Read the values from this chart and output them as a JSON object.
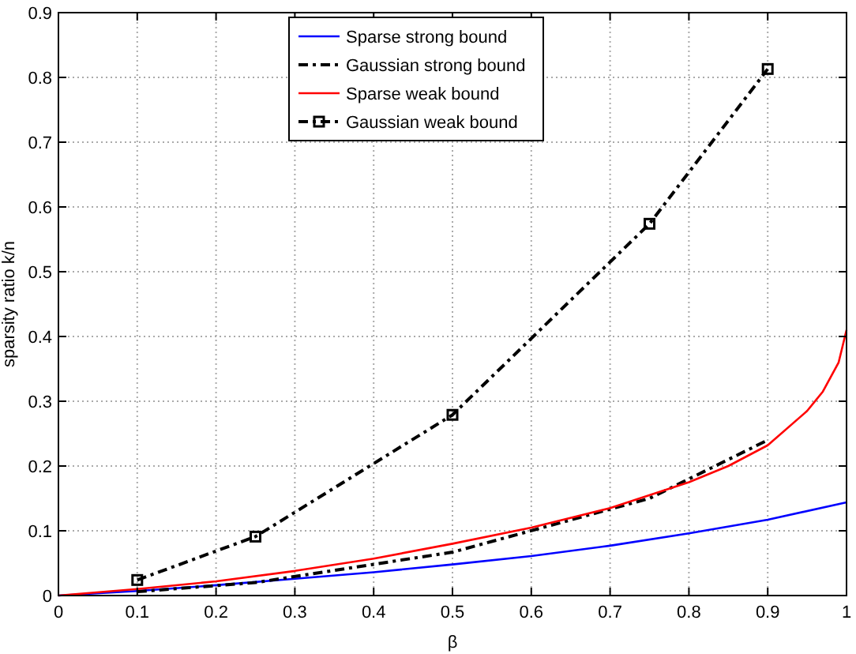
{
  "chart_data": {
    "type": "line",
    "xlabel": "β",
    "ylabel": "sparsity ratio k/n",
    "xlim": [
      0,
      1
    ],
    "ylim": [
      0,
      0.9
    ],
    "xticks": [
      0,
      0.1,
      0.2,
      0.3,
      0.4,
      0.5,
      0.6,
      0.7,
      0.8,
      0.9,
      1
    ],
    "yticks": [
      0,
      0.1,
      0.2,
      0.3,
      0.4,
      0.5,
      0.6,
      0.7,
      0.8,
      0.9
    ],
    "grid": true,
    "legend": "top",
    "series": [
      {
        "name": "Sparse strong bound",
        "color": "#0000ff",
        "line_style": "solid",
        "marker": "none",
        "x": [
          0,
          0.1,
          0.2,
          0.3,
          0.4,
          0.5,
          0.6,
          0.7,
          0.8,
          0.9,
          1
        ],
        "values": [
          0,
          0.007,
          0.016,
          0.026,
          0.036,
          0.048,
          0.061,
          0.077,
          0.096,
          0.117,
          0.144
        ]
      },
      {
        "name": "Gaussian strong bound",
        "color": "#000000",
        "line_style": "dashed",
        "marker": "none",
        "x": [
          0.1,
          0.25,
          0.5,
          0.75,
          0.9
        ],
        "values": [
          0.006,
          0.02,
          0.067,
          0.15,
          0.24
        ]
      },
      {
        "name": "Sparse weak bound",
        "color": "#ff0000",
        "line_style": "solid",
        "marker": "none",
        "x": [
          0,
          0.1,
          0.2,
          0.3,
          0.4,
          0.5,
          0.6,
          0.7,
          0.8,
          0.85,
          0.9,
          0.95,
          0.97,
          0.99,
          1
        ],
        "values": [
          0,
          0.01,
          0.022,
          0.038,
          0.057,
          0.08,
          0.105,
          0.135,
          0.175,
          0.2,
          0.232,
          0.285,
          0.315,
          0.36,
          0.41
        ]
      },
      {
        "name": "Gaussian weak bound",
        "color": "#000000",
        "line_style": "dashed",
        "marker": "square",
        "x": [
          0.1,
          0.25,
          0.5,
          0.75,
          0.9
        ],
        "values": [
          0.024,
          0.091,
          0.279,
          0.574,
          0.813
        ]
      }
    ]
  }
}
